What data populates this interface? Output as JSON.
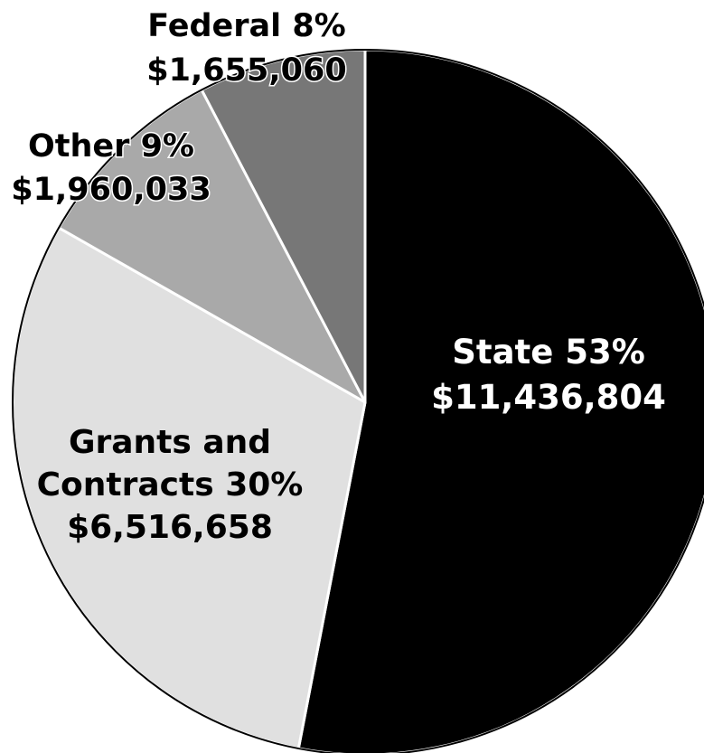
{
  "chart_data": {
    "type": "pie",
    "title": "",
    "slices": [
      {
        "name": "State",
        "percent_label": "53%",
        "amount": "$11,436,804",
        "value": 11436804,
        "color": "#000000",
        "text_color": "#ffffff"
      },
      {
        "name": "Grants and Contracts",
        "percent_label": "30%",
        "amount": "$6,516,658",
        "value": 6516658,
        "color": "#e0e0e0",
        "text_color": "#000000"
      },
      {
        "name": "Other",
        "percent_label": "9%",
        "amount": "$1,960,033",
        "value": 1960033,
        "color": "#a9a9a9",
        "text_color": "#000000"
      },
      {
        "name": "Federal",
        "percent_label": "8%",
        "amount": "$1,655,060",
        "value": 1655060,
        "color": "#777777",
        "text_color": "#000000"
      }
    ],
    "labels": {
      "state": {
        "line1": "State 53%",
        "line2": "$11,436,804"
      },
      "grants": {
        "line1": "Grants and",
        "line2": "Contracts 30%",
        "line3": "$6,516,658"
      },
      "other": {
        "line1": "Other 9%",
        "line2": "$1,960,033"
      },
      "federal": {
        "line1": "Federal 8%",
        "line2": "$1,655,060"
      }
    }
  }
}
